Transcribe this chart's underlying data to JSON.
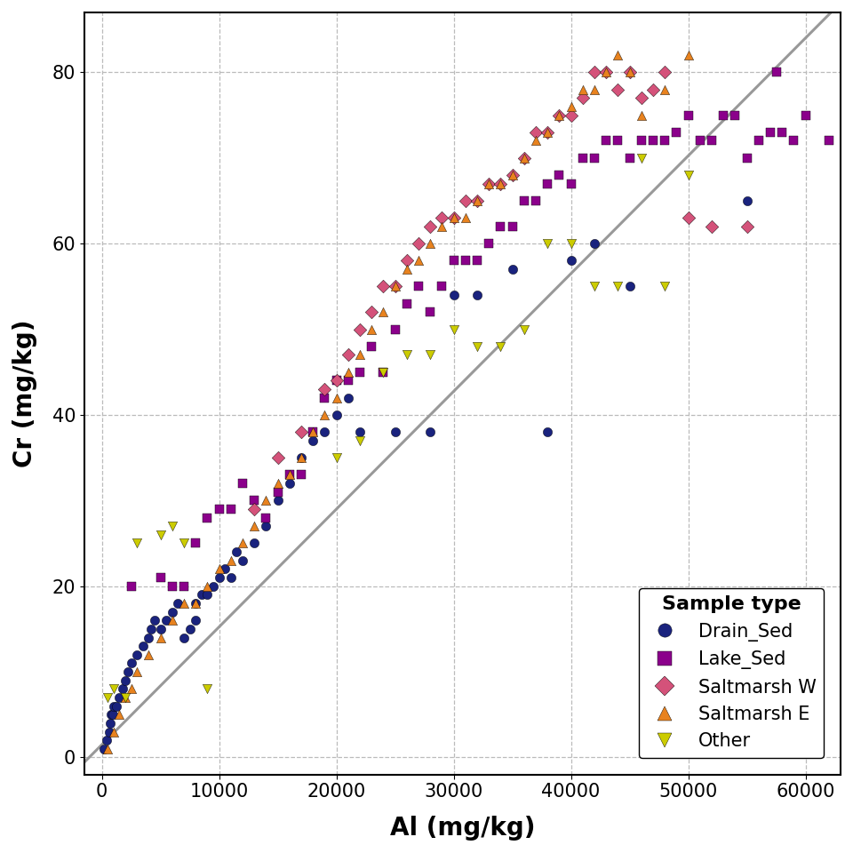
{
  "xlabel": "Al (mg/kg)",
  "ylabel": "Cr (mg/kg)",
  "legend_title": "Sample type",
  "xlim": [
    -1500,
    63000
  ],
  "ylim": [
    -2,
    87
  ],
  "xticks": [
    0,
    10000,
    20000,
    30000,
    40000,
    50000,
    60000
  ],
  "yticks": [
    0,
    20,
    40,
    60,
    80
  ],
  "regression_color": "#999999",
  "regression_lw": 2.2,
  "regression_slope": 0.001375,
  "regression_intercept": 1.5,
  "types": [
    "Drain_Sed",
    "Lake_Sed",
    "Saltmarsh W",
    "Saltmarsh E",
    "Other"
  ],
  "colors": [
    "#1a237e",
    "#8B008B",
    "#d4527a",
    "#e8821e",
    "#cccc00"
  ],
  "markers": [
    "o",
    "s",
    "D",
    "^",
    "v"
  ],
  "marker_size": 55,
  "Drain_Sed": {
    "Al": [
      200,
      400,
      600,
      700,
      800,
      900,
      1000,
      1200,
      1500,
      1800,
      2000,
      2200,
      2500,
      3000,
      3500,
      4000,
      4200,
      4500,
      5000,
      5500,
      6000,
      6500,
      7000,
      7500,
      8000,
      8000,
      8500,
      9000,
      9500,
      10000,
      10500,
      11000,
      11500,
      12000,
      13000,
      14000,
      15000,
      16000,
      17000,
      18000,
      19000,
      20000,
      21000,
      22000,
      25000,
      28000,
      30000,
      32000,
      35000,
      38000,
      40000,
      42000,
      45000,
      55000
    ],
    "Cr": [
      1,
      2,
      3,
      4,
      5,
      5,
      6,
      6,
      7,
      8,
      9,
      10,
      11,
      12,
      13,
      14,
      15,
      16,
      15,
      16,
      17,
      18,
      14,
      15,
      16,
      18,
      19,
      19,
      20,
      21,
      22,
      21,
      24,
      23,
      25,
      27,
      30,
      32,
      35,
      37,
      38,
      40,
      42,
      38,
      38,
      38,
      54,
      54,
      57,
      38,
      58,
      60,
      55,
      65
    ]
  },
  "Lake_Sed": {
    "Al": [
      2500,
      5000,
      6000,
      7000,
      8000,
      9000,
      10000,
      11000,
      12000,
      13000,
      14000,
      15000,
      16000,
      17000,
      18000,
      19000,
      20000,
      21000,
      22000,
      23000,
      24000,
      25000,
      26000,
      27000,
      28000,
      29000,
      30000,
      31000,
      32000,
      33000,
      34000,
      35000,
      36000,
      37000,
      38000,
      39000,
      40000,
      41000,
      42000,
      43000,
      44000,
      45000,
      46000,
      47000,
      48000,
      49000,
      50000,
      51000,
      52000,
      53000,
      54000,
      55000,
      56000,
      57000,
      57500,
      58000,
      59000,
      60000,
      62000
    ],
    "Cr": [
      20,
      21,
      20,
      20,
      25,
      28,
      29,
      29,
      32,
      30,
      28,
      31,
      33,
      33,
      38,
      42,
      44,
      44,
      45,
      48,
      45,
      50,
      53,
      55,
      52,
      55,
      58,
      58,
      58,
      60,
      62,
      62,
      65,
      65,
      67,
      68,
      67,
      70,
      70,
      72,
      72,
      70,
      72,
      72,
      72,
      73,
      75,
      72,
      72,
      75,
      75,
      70,
      72,
      73,
      80,
      73,
      72,
      75,
      72
    ]
  },
  "Saltmarsh W": {
    "Al": [
      13000,
      15000,
      17000,
      19000,
      20000,
      21000,
      22000,
      23000,
      24000,
      25000,
      26000,
      27000,
      28000,
      29000,
      30000,
      31000,
      32000,
      33000,
      34000,
      35000,
      36000,
      37000,
      38000,
      39000,
      40000,
      41000,
      42000,
      43000,
      44000,
      45000,
      46000,
      47000,
      48000,
      50000,
      52000,
      55000
    ],
    "Cr": [
      29,
      35,
      38,
      43,
      44,
      47,
      50,
      52,
      55,
      55,
      58,
      60,
      62,
      63,
      63,
      65,
      65,
      67,
      67,
      68,
      70,
      73,
      73,
      75,
      75,
      77,
      80,
      80,
      78,
      80,
      77,
      78,
      80,
      63,
      62,
      62
    ]
  },
  "Saltmarsh E": {
    "Al": [
      500,
      1000,
      1500,
      2000,
      2500,
      3000,
      4000,
      5000,
      6000,
      7000,
      8000,
      9000,
      10000,
      11000,
      12000,
      13000,
      14000,
      15000,
      16000,
      17000,
      18000,
      19000,
      20000,
      21000,
      22000,
      23000,
      24000,
      25000,
      26000,
      27000,
      28000,
      29000,
      30000,
      31000,
      32000,
      33000,
      34000,
      35000,
      36000,
      37000,
      38000,
      39000,
      40000,
      41000,
      42000,
      43000,
      44000,
      45000,
      46000,
      48000,
      50000
    ],
    "Cr": [
      1,
      3,
      5,
      7,
      8,
      10,
      12,
      14,
      16,
      18,
      18,
      20,
      22,
      23,
      25,
      27,
      30,
      32,
      33,
      35,
      38,
      40,
      42,
      45,
      47,
      50,
      52,
      55,
      57,
      58,
      60,
      62,
      63,
      63,
      65,
      67,
      67,
      68,
      70,
      72,
      73,
      75,
      76,
      78,
      78,
      80,
      82,
      80,
      75,
      78,
      82
    ]
  },
  "Other": {
    "Al": [
      500,
      1000,
      2000,
      3000,
      5000,
      6000,
      7000,
      9000,
      20000,
      22000,
      24000,
      26000,
      28000,
      30000,
      32000,
      34000,
      36000,
      38000,
      40000,
      42000,
      44000,
      46000,
      48000,
      50000
    ],
    "Cr": [
      7,
      8,
      7,
      25,
      26,
      27,
      25,
      8,
      35,
      37,
      45,
      47,
      47,
      50,
      48,
      48,
      50,
      60,
      60,
      55,
      55,
      70,
      55,
      68
    ]
  }
}
